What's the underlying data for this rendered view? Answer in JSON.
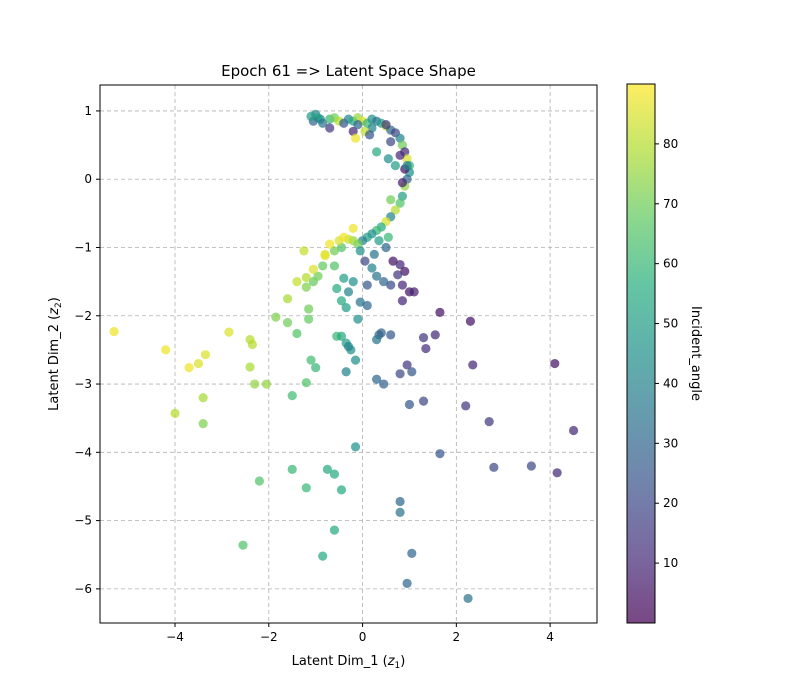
{
  "chart_data": {
    "type": "scatter",
    "title": "Epoch 61 => Latent Space Shape",
    "xlabel": {
      "main": "Latent Dim_1 (",
      "var": "z",
      "sub": "1",
      "close": ")"
    },
    "ylabel": {
      "main": "Latent Dim_2 (",
      "var": "z",
      "sub": "2",
      "close": ")"
    },
    "xlim": [
      -5.6,
      5.0
    ],
    "ylim": [
      -6.5,
      1.38
    ],
    "xticks": [
      -4,
      -2,
      0,
      2,
      4
    ],
    "yticks": [
      1,
      0,
      -1,
      -2,
      -3,
      -4,
      -5,
      -6
    ],
    "grid": true,
    "colorbar": {
      "label": "Incident_angle",
      "min": 0,
      "max": 90,
      "ticks": [
        10,
        20,
        30,
        40,
        50,
        60,
        70,
        80
      ]
    },
    "points": [
      [
        -1.0,
        0.95,
        40
      ],
      [
        -0.95,
        0.9,
        55
      ],
      [
        -1.05,
        0.85,
        30
      ],
      [
        -0.9,
        0.88,
        45
      ],
      [
        -1.1,
        0.92,
        50
      ],
      [
        -0.85,
        0.82,
        35
      ],
      [
        -0.7,
        0.88,
        60
      ],
      [
        -0.6,
        0.9,
        70
      ],
      [
        -0.5,
        0.85,
        80
      ],
      [
        -0.4,
        0.82,
        25
      ],
      [
        -0.3,
        0.88,
        40
      ],
      [
        -0.2,
        0.85,
        55
      ],
      [
        -0.1,
        0.9,
        75
      ],
      [
        0.0,
        0.85,
        85
      ],
      [
        0.1,
        0.82,
        60
      ],
      [
        0.2,
        0.88,
        45
      ],
      [
        0.3,
        0.85,
        35
      ],
      [
        0.4,
        0.82,
        50
      ],
      [
        0.5,
        0.78,
        80
      ],
      [
        0.6,
        0.72,
        30
      ],
      [
        0.7,
        0.68,
        20
      ],
      [
        0.8,
        0.6,
        40
      ],
      [
        0.85,
        0.5,
        70
      ],
      [
        0.9,
        0.4,
        10
      ],
      [
        0.95,
        0.3,
        85
      ],
      [
        1.0,
        0.2,
        60
      ],
      [
        1.0,
        0.1,
        45
      ],
      [
        0.95,
        0.0,
        30
      ],
      [
        0.9,
        -0.1,
        75
      ],
      [
        0.85,
        -0.25,
        50
      ],
      [
        0.8,
        -0.35,
        65
      ],
      [
        0.7,
        -0.45,
        80
      ],
      [
        0.6,
        -0.55,
        40
      ],
      [
        0.5,
        -0.62,
        85
      ],
      [
        0.4,
        -0.7,
        55
      ],
      [
        0.3,
        -0.75,
        60
      ],
      [
        0.2,
        -0.8,
        45
      ],
      [
        0.1,
        -0.85,
        50
      ],
      [
        0.0,
        -0.9,
        40
      ],
      [
        -0.1,
        -0.95,
        70
      ],
      [
        -0.2,
        -0.9,
        75
      ],
      [
        -0.3,
        -0.88,
        82
      ],
      [
        -0.45,
        -1.0,
        65
      ],
      [
        -0.6,
        -1.05,
        70
      ],
      [
        -0.8,
        -1.1,
        85
      ],
      [
        -0.2,
        -0.72,
        88
      ],
      [
        -0.7,
        0.75,
        15
      ],
      [
        -0.2,
        0.7,
        10
      ],
      [
        0.2,
        0.75,
        40
      ],
      [
        0.5,
        0.8,
        15
      ],
      [
        0.6,
        0.55,
        20
      ],
      [
        0.8,
        0.35,
        10
      ],
      [
        0.9,
        0.15,
        5
      ],
      [
        0.85,
        -0.05,
        8
      ],
      [
        0.6,
        -0.3,
        70
      ],
      [
        0.3,
        0.4,
        55
      ],
      [
        0.7,
        0.2,
        50
      ],
      [
        0.55,
        0.3,
        45
      ],
      [
        -0.15,
        0.6,
        88
      ],
      [
        0.05,
        0.7,
        82
      ],
      [
        0.65,
        -1.2,
        5
      ],
      [
        0.8,
        -1.25,
        10
      ],
      [
        0.9,
        -1.35,
        5
      ],
      [
        0.75,
        -1.4,
        15
      ],
      [
        0.6,
        -1.55,
        20
      ],
      [
        0.85,
        -1.55,
        10
      ],
      [
        1.0,
        -1.65,
        5
      ],
      [
        1.1,
        -1.65,
        8
      ],
      [
        0.85,
        -1.78,
        10
      ],
      [
        0.2,
        -1.3,
        40
      ],
      [
        0.3,
        -1.42,
        35
      ],
      [
        0.45,
        -1.5,
        30
      ],
      [
        0.1,
        -1.55,
        25
      ],
      [
        -0.2,
        -1.5,
        45
      ],
      [
        -0.4,
        -1.45,
        50
      ],
      [
        -0.55,
        -1.6,
        55
      ],
      [
        -0.3,
        -1.65,
        40
      ],
      [
        -0.05,
        -1.8,
        35
      ],
      [
        0.1,
        -1.85,
        30
      ],
      [
        -0.45,
        -1.78,
        55
      ],
      [
        -0.35,
        -1.88,
        50
      ],
      [
        -0.1,
        -2.05,
        45
      ],
      [
        -0.55,
        -2.3,
        60
      ],
      [
        -0.45,
        -2.3,
        55
      ],
      [
        -0.35,
        -2.4,
        50
      ],
      [
        -0.25,
        -2.5,
        45
      ],
      [
        -0.3,
        -2.45,
        40
      ],
      [
        -0.15,
        -2.65,
        45
      ],
      [
        -0.35,
        -2.82,
        40
      ],
      [
        0.35,
        -2.28,
        30
      ],
      [
        0.4,
        -2.25,
        28
      ],
      [
        0.6,
        -2.28,
        25
      ],
      [
        0.3,
        -2.35,
        35
      ],
      [
        0.3,
        -2.93,
        30
      ],
      [
        0.45,
        -3.0,
        28
      ],
      [
        0.8,
        -2.85,
        20
      ],
      [
        0.95,
        -2.72,
        15
      ],
      [
        1.05,
        -2.82,
        25
      ],
      [
        1.3,
        -2.32,
        15
      ],
      [
        1.55,
        -2.28,
        10
      ],
      [
        1.35,
        -2.48,
        12
      ],
      [
        1.65,
        -1.95,
        5
      ],
      [
        2.3,
        -2.08,
        5
      ],
      [
        2.35,
        -2.72,
        10
      ],
      [
        1.0,
        -3.3,
        25
      ],
      [
        1.3,
        -3.25,
        20
      ],
      [
        2.2,
        -3.32,
        15
      ],
      [
        2.7,
        -3.55,
        15
      ],
      [
        1.65,
        -4.02,
        25
      ],
      [
        2.8,
        -4.22,
        20
      ],
      [
        3.6,
        -4.2,
        20
      ],
      [
        4.1,
        -2.7,
        5
      ],
      [
        4.15,
        -4.3,
        10
      ],
      [
        4.5,
        -3.68,
        10
      ],
      [
        -0.15,
        -3.92,
        45
      ],
      [
        0.8,
        -4.72,
        30
      ],
      [
        0.8,
        -4.88,
        35
      ],
      [
        1.05,
        -5.48,
        30
      ],
      [
        0.95,
        -5.92,
        30
      ],
      [
        2.25,
        -6.14,
        35
      ],
      [
        -0.75,
        -4.25,
        55
      ],
      [
        -0.6,
        -4.32,
        55
      ],
      [
        -0.45,
        -4.55,
        55
      ],
      [
        -0.6,
        -5.14,
        55
      ],
      [
        -0.85,
        -5.52,
        55
      ],
      [
        -1.5,
        -4.25,
        60
      ],
      [
        -1.2,
        -4.52,
        60
      ],
      [
        -2.2,
        -4.42,
        65
      ],
      [
        -2.55,
        -5.36,
        65
      ],
      [
        -1.1,
        -2.65,
        62
      ],
      [
        -1.0,
        -2.76,
        60
      ],
      [
        -1.2,
        -2.98,
        65
      ],
      [
        -1.5,
        -3.17,
        62
      ],
      [
        -1.4,
        -2.26,
        65
      ],
      [
        -1.15,
        -2.05,
        68
      ],
      [
        -1.6,
        -2.1,
        70
      ],
      [
        -1.85,
        -2.02,
        72
      ],
      [
        -1.6,
        -1.75,
        78
      ],
      [
        -1.15,
        -1.9,
        70
      ],
      [
        -1.2,
        -1.58,
        72
      ],
      [
        -1.05,
        -1.5,
        68
      ],
      [
        -0.95,
        -1.42,
        70
      ],
      [
        -1.4,
        -1.5,
        82
      ],
      [
        -1.2,
        -1.44,
        80
      ],
      [
        -1.05,
        -1.32,
        85
      ],
      [
        -0.8,
        -1.12,
        86
      ],
      [
        -0.6,
        -1.27,
        65
      ],
      [
        -0.85,
        -1.27,
        68
      ],
      [
        -1.25,
        -1.05,
        82
      ],
      [
        -0.7,
        -0.95,
        88
      ],
      [
        -0.5,
        -0.9,
        85
      ],
      [
        -0.4,
        -0.85,
        88
      ],
      [
        -2.3,
        -3.0,
        75
      ],
      [
        -2.4,
        -2.75,
        78
      ],
      [
        -2.35,
        -2.42,
        80
      ],
      [
        -2.4,
        -2.35,
        80
      ],
      [
        -2.05,
        -3.0,
        75
      ],
      [
        -3.4,
        -3.2,
        78
      ],
      [
        -3.4,
        -3.58,
        72
      ],
      [
        -3.35,
        -2.57,
        85
      ],
      [
        -3.5,
        -2.7,
        85
      ],
      [
        -3.7,
        -2.76,
        88
      ],
      [
        -4.0,
        -3.43,
        80
      ],
      [
        -4.2,
        -2.5,
        88
      ],
      [
        -2.85,
        -2.24,
        85
      ],
      [
        -5.3,
        -2.23,
        88
      ],
      [
        0.95,
        0.2,
        40
      ],
      [
        -0.1,
        0.8,
        30
      ],
      [
        0.15,
        0.65,
        25
      ],
      [
        0.35,
        -0.9,
        50
      ],
      [
        0.5,
        -1.0,
        30
      ],
      [
        0.25,
        -1.1,
        35
      ],
      [
        0.05,
        -1.2,
        20
      ],
      [
        -0.05,
        -1.05,
        45
      ],
      [
        0.55,
        -0.85,
        60
      ]
    ]
  }
}
